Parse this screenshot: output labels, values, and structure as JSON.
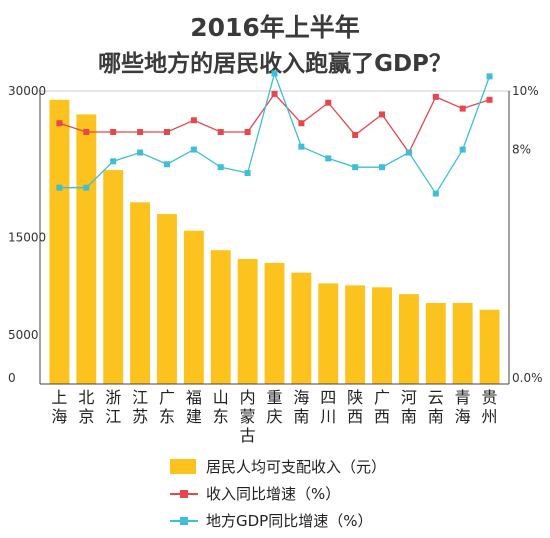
{
  "title": {
    "line1": "2016年上半年",
    "line2": "哪些地方的居民收入跑赢了GDP？"
  },
  "colors": {
    "bar": "#fcc21d",
    "income_line": "#e8464a",
    "gdp_line": "#3dbfd8",
    "axis": "#444444",
    "grid": "#cccccc"
  },
  "legend": [
    {
      "key": "bar",
      "label": "居民人均可支配收入（元）"
    },
    {
      "key": "income_line",
      "label": "收入同比增速（%）"
    },
    {
      "key": "gdp_line",
      "label": "地方GDP同比增速（%）"
    }
  ],
  "chart_data": {
    "type": "bar",
    "categories": [
      "上海",
      "北京",
      "浙江",
      "江苏",
      "广东",
      "福建",
      "山东",
      "内蒙古",
      "重庆",
      "海南",
      "四川",
      "陕西",
      "广西",
      "河南",
      "云南",
      "青海",
      "贵州"
    ],
    "left_axis": {
      "ticks": [
        0,
        5000,
        15000,
        30000
      ],
      "tick_labels": [
        "0",
        "5000",
        "15000",
        "30000"
      ],
      "ylim": [
        0,
        30000
      ]
    },
    "right_axis": {
      "ticks": [
        0,
        8,
        10
      ],
      "tick_labels": [
        "0.0%",
        "8%",
        "10%"
      ],
      "ylim": [
        0,
        10
      ]
    },
    "series": [
      {
        "name": "居民人均可支配收入（元）",
        "axis": "left",
        "kind": "bar",
        "values": [
          29100,
          27600,
          21900,
          18600,
          17400,
          15700,
          13700,
          12800,
          12400,
          11400,
          10300,
          10100,
          9900,
          9200,
          8300,
          8300,
          7600
        ]
      },
      {
        "name": "收入同比增速（%）",
        "axis": "right",
        "kind": "line",
        "values": [
          8.9,
          8.6,
          8.6,
          8.6,
          8.6,
          9.0,
          8.6,
          8.6,
          9.9,
          8.9,
          9.6,
          8.5,
          9.2,
          7.9,
          9.8,
          9.4,
          9.7
        ]
      },
      {
        "name": "地方GDP同比增速（%）",
        "axis": "right",
        "kind": "line",
        "values": [
          6.7,
          6.7,
          7.6,
          7.9,
          7.5,
          8.0,
          7.4,
          7.2,
          10.6,
          8.1,
          7.7,
          7.4,
          7.4,
          7.9,
          6.5,
          8.0,
          10.5
        ]
      }
    ],
    "xlabel": "",
    "ylabel": ""
  }
}
